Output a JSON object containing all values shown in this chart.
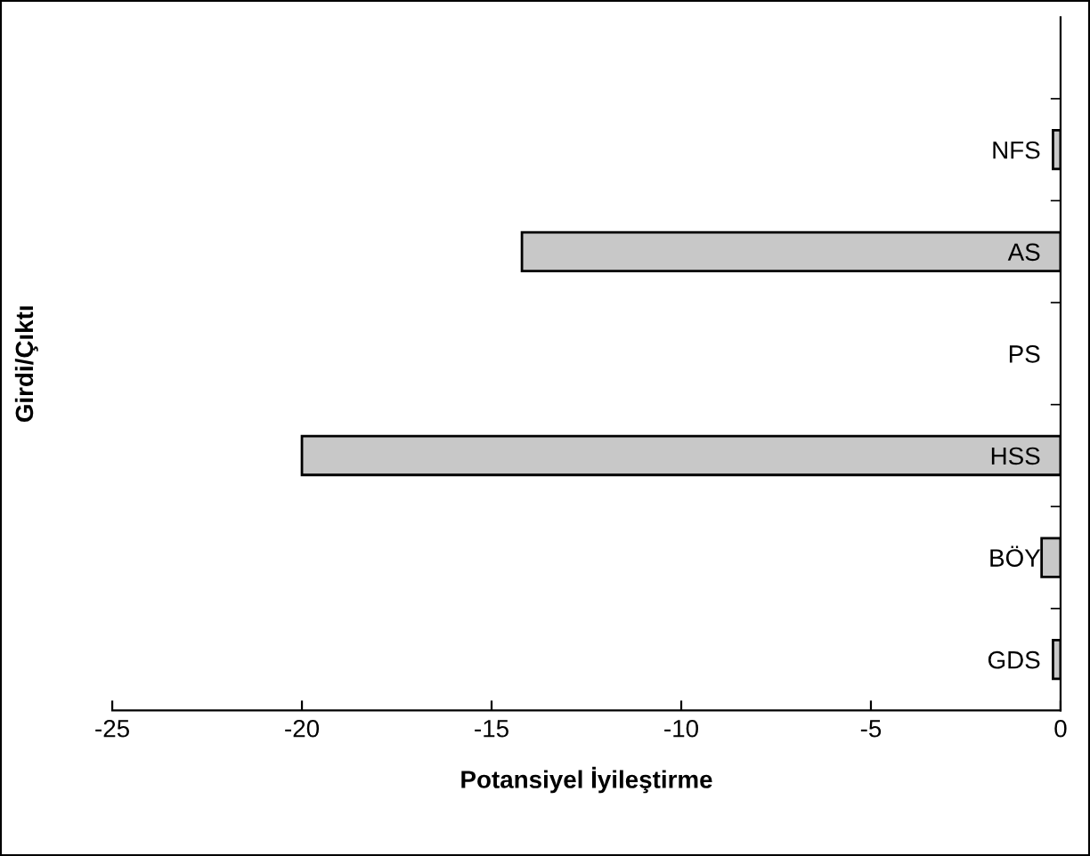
{
  "chart_data": {
    "type": "bar",
    "orientation": "horizontal",
    "xlabel": "Potansiyel İyileştirme",
    "ylabel": "Girdi/Çıktı",
    "categories": [
      "NFS",
      "AS",
      "PS",
      "HSS",
      "BÖY",
      "GDS"
    ],
    "values": [
      -0.2,
      -14.2,
      0,
      -20,
      -0.5,
      -0.2
    ],
    "color": "#c8c8c8",
    "xlim": [
      -25,
      0
    ],
    "xticks": [
      -25,
      -20,
      -15,
      -10,
      -5,
      0
    ],
    "grid": false,
    "legend": false
  }
}
